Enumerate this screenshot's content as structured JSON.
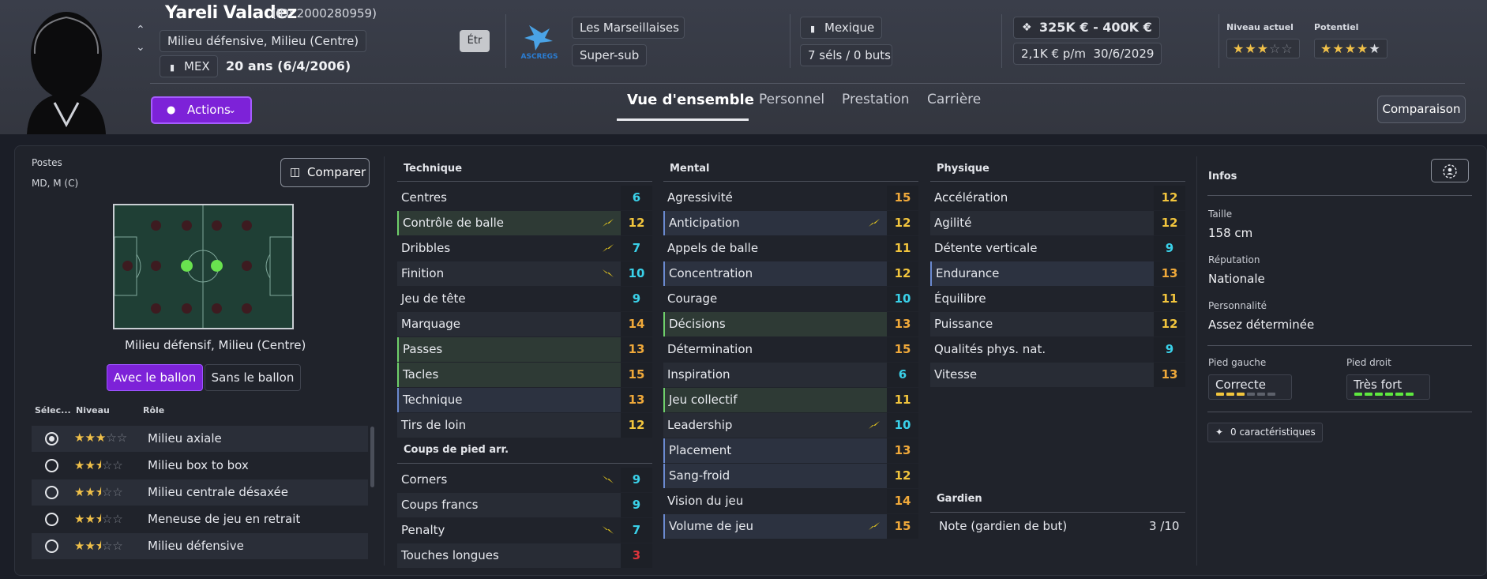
{
  "player": {
    "name": "Yareli Valadez",
    "id_label": "(ID: 2000280959)",
    "positions_text": "Milieu défensive, Milieu (Centre)",
    "nationality_code": "MEX",
    "age_text": "20 ans (6/4/2006)",
    "status_badge": "Étr"
  },
  "club": {
    "name": "Les Marseillaises",
    "role": "Super-sub",
    "logo_text": "ASCREGS"
  },
  "nation": {
    "name": "Mexique",
    "caps": "7 séls / 0 buts"
  },
  "value": {
    "range": "325K € - 400K €",
    "wage": "2,1K € p/m",
    "contract_end": "30/6/2029"
  },
  "ability": {
    "current_label": "Niveau actuel",
    "potential_label": "Potentiel",
    "current_stars": 3,
    "potential_stars": 4.5
  },
  "header": {
    "actions_label": "Actions",
    "tabs": [
      "Vue d'ensemble",
      "Personnel",
      "Prestation",
      "Carrière"
    ],
    "active_tab": "Vue d'ensemble",
    "compare_label": "Comparaison"
  },
  "left": {
    "positions_title": "Postes",
    "positions_short": "MD, M (C)",
    "compare_button": "Comparer",
    "pitch_caption": "Milieu défensif, Milieu (Centre)",
    "toggle_with_ball": "Avec le ballon",
    "toggle_without_ball": "Sans le ballon",
    "columns": [
      "Sélec...",
      "Niveau",
      "Rôle"
    ],
    "roles": [
      {
        "label": "Milieu axiale",
        "stars": 3,
        "selected": true
      },
      {
        "label": "Milieu box to box",
        "stars": 2.5,
        "selected": false
      },
      {
        "label": "Milieu centrale désaxée",
        "stars": 2.5,
        "selected": false
      },
      {
        "label": "Meneuse de jeu en retrait",
        "stars": 2.5,
        "selected": false
      },
      {
        "label": "Milieu défensive",
        "stars": 2.5,
        "selected": false
      }
    ]
  },
  "technique": {
    "title": "Technique",
    "attrs": [
      {
        "label": "Centres",
        "value": "6",
        "color": "cyan"
      },
      {
        "label": "Contrôle de balle",
        "value": "12",
        "color": "yellow",
        "arrow": "up",
        "hl": "green"
      },
      {
        "label": "Dribbles",
        "value": "7",
        "color": "cyan",
        "arrow": "up"
      },
      {
        "label": "Finition",
        "value": "10",
        "color": "cyan",
        "arrow": "down"
      },
      {
        "label": "Jeu de tête",
        "value": "9",
        "color": "cyan"
      },
      {
        "label": "Marquage",
        "value": "14",
        "color": "orange"
      },
      {
        "label": "Passes",
        "value": "13",
        "color": "orange",
        "hl": "green"
      },
      {
        "label": "Tacles",
        "value": "15",
        "color": "orange",
        "hl": "green"
      },
      {
        "label": "Technique",
        "value": "13",
        "color": "orange",
        "hl": "blue"
      },
      {
        "label": "Tirs de loin",
        "value": "12",
        "color": "yellow"
      }
    ]
  },
  "set_pieces": {
    "title": "Coups de pied arr.",
    "attrs": [
      {
        "label": "Corners",
        "value": "9",
        "color": "cyan",
        "arrow": "down"
      },
      {
        "label": "Coups francs",
        "value": "9",
        "color": "cyan"
      },
      {
        "label": "Penalty",
        "value": "7",
        "color": "cyan",
        "arrow": "down"
      },
      {
        "label": "Touches longues",
        "value": "3",
        "color": "red"
      }
    ]
  },
  "mental": {
    "title": "Mental",
    "attrs": [
      {
        "label": "Agressivité",
        "value": "15",
        "color": "orange"
      },
      {
        "label": "Anticipation",
        "value": "12",
        "color": "yellow",
        "arrow": "up",
        "hl": "blue"
      },
      {
        "label": "Appels de balle",
        "value": "11",
        "color": "yellow"
      },
      {
        "label": "Concentration",
        "value": "12",
        "color": "yellow",
        "hl": "blue"
      },
      {
        "label": "Courage",
        "value": "10",
        "color": "cyan"
      },
      {
        "label": "Décisions",
        "value": "13",
        "color": "orange",
        "hl": "green"
      },
      {
        "label": "Détermination",
        "value": "15",
        "color": "orange"
      },
      {
        "label": "Inspiration",
        "value": "6",
        "color": "cyan"
      },
      {
        "label": "Jeu collectif",
        "value": "11",
        "color": "yellow",
        "hl": "green"
      },
      {
        "label": "Leadership",
        "value": "10",
        "color": "cyan",
        "arrow": "up"
      },
      {
        "label": "Placement",
        "value": "13",
        "color": "orange",
        "hl": "blue"
      },
      {
        "label": "Sang-froid",
        "value": "12",
        "color": "yellow",
        "hl": "blue"
      },
      {
        "label": "Vision du jeu",
        "value": "14",
        "color": "orange"
      },
      {
        "label": "Volume de jeu",
        "value": "15",
        "color": "orange",
        "arrow": "up",
        "hl": "blue"
      }
    ]
  },
  "physique": {
    "title": "Physique",
    "attrs": [
      {
        "label": "Accélération",
        "value": "12",
        "color": "yellow"
      },
      {
        "label": "Agilité",
        "value": "12",
        "color": "yellow"
      },
      {
        "label": "Détente verticale",
        "value": "9",
        "color": "cyan"
      },
      {
        "label": "Endurance",
        "value": "13",
        "color": "orange",
        "hl": "blue"
      },
      {
        "label": "Équilibre",
        "value": "11",
        "color": "yellow"
      },
      {
        "label": "Puissance",
        "value": "12",
        "color": "yellow"
      },
      {
        "label": "Qualités phys. nat.",
        "value": "9",
        "color": "cyan"
      },
      {
        "label": "Vitesse",
        "value": "13",
        "color": "orange"
      }
    ]
  },
  "goalkeeper": {
    "title": "Gardien",
    "label": "Note (gardien de but)",
    "value": "3 /10"
  },
  "info": {
    "title": "Infos",
    "height_label": "Taille",
    "height": "158 cm",
    "reputation_label": "Réputation",
    "reputation": "Nationale",
    "personality_label": "Personnalité",
    "personality": "Assez déterminée",
    "left_foot_label": "Pied gauche",
    "left_foot": "Correcte",
    "left_foot_level": 3,
    "right_foot_label": "Pied droit",
    "right_foot": "Très fort",
    "right_foot_level": 6,
    "traits": "0 caractéristiques"
  },
  "colors": {
    "accent": "#7d22d8",
    "cyan": "#3ad1e9",
    "yellow": "#f2c53d",
    "orange": "#f0a93a",
    "red": "#e0353c"
  }
}
